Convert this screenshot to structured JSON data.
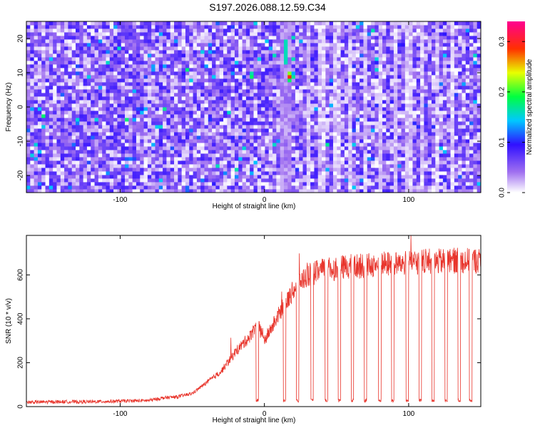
{
  "title": "S197.2026.088.12.59.C34",
  "chart_data": [
    {
      "type": "heatmap",
      "xlabel": "Height of straight line (km)",
      "ylabel": "Frequency (Hz)",
      "xlim": [
        -165,
        150
      ],
      "ylim": [
        -25,
        25
      ],
      "xticks": [
        -100,
        0,
        100
      ],
      "yticks": [
        -20,
        -10,
        0,
        10,
        20
      ],
      "colorbar": {
        "label": "Normalized spectral amplitude",
        "range": [
          0.0,
          0.34
        ],
        "ticks": [
          "0.0",
          "0.1",
          "0.2",
          "0.3"
        ],
        "colors": [
          "#ffffff",
          "#8a2be2",
          "#0000ff",
          "#00ffff",
          "#00ff00",
          "#ffff00",
          "#ff0000",
          "#ff00aa"
        ]
      },
      "features": {
        "noise_level": 0.04,
        "peak": {
          "x": 18,
          "y": 9,
          "value": 0.34
        },
        "vertical_streaks_x": [
          30,
          40,
          50,
          60,
          70,
          80,
          90,
          100,
          110,
          120,
          130
        ]
      }
    },
    {
      "type": "line",
      "xlabel": "Height of straight line (km)",
      "ylabel": "SNR (10 * v/v)",
      "xlim": [
        -165,
        150
      ],
      "ylim": [
        0,
        780
      ],
      "xticks": [
        -100,
        0,
        100
      ],
      "yticks": [
        0,
        200,
        400,
        600
      ],
      "series": [
        {
          "color": "#e8342b",
          "x": [
            -165,
            -140,
            -120,
            -100,
            -80,
            -70,
            -60,
            -50,
            -40,
            -30,
            -20,
            -10,
            -5,
            0,
            5,
            10,
            15,
            20,
            25,
            30,
            40,
            50,
            60,
            70,
            80,
            90,
            100,
            110,
            120,
            130,
            140,
            150
          ],
          "y": [
            20,
            22,
            22,
            25,
            28,
            40,
            45,
            60,
            110,
            160,
            250,
            320,
            380,
            300,
            360,
            420,
            470,
            530,
            570,
            600,
            620,
            630,
            640,
            640,
            650,
            650,
            655,
            660,
            660,
            665,
            665,
            665
          ],
          "dropouts_x": [
            -5,
            14,
            23,
            33,
            43,
            52,
            61,
            70,
            80,
            89,
            99,
            108,
            117,
            126,
            135,
            143
          ]
        }
      ]
    }
  ]
}
